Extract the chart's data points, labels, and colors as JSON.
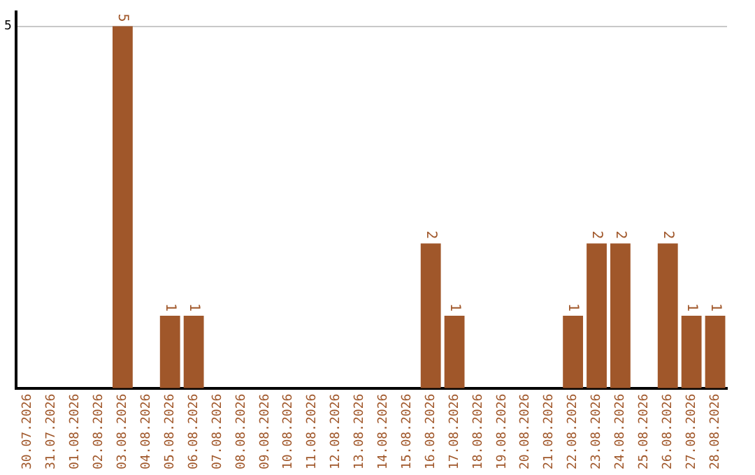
{
  "chart_data": {
    "type": "bar",
    "categories": [
      "30.07.2026",
      "31.07.2026",
      "01.08.2026",
      "02.08.2026",
      "03.08.2026",
      "04.08.2026",
      "05.08.2026",
      "06.08.2026",
      "07.08.2026",
      "08.08.2026",
      "09.08.2026",
      "10.08.2026",
      "11.08.2026",
      "12.08.2026",
      "13.08.2026",
      "14.08.2026",
      "15.08.2026",
      "16.08.2026",
      "17.08.2026",
      "18.08.2026",
      "19.08.2026",
      "20.08.2026",
      "21.08.2026",
      "22.08.2026",
      "23.08.2026",
      "24.08.2026",
      "25.08.2026",
      "26.08.2026",
      "27.08.2026",
      "28.08.2026"
    ],
    "values": [
      0,
      0,
      0,
      0,
      5,
      0,
      1,
      1,
      0,
      0,
      0,
      0,
      0,
      0,
      0,
      0,
      0,
      2,
      1,
      0,
      0,
      0,
      0,
      1,
      2,
      2,
      0,
      2,
      1,
      1
    ],
    "value_labels": [
      null,
      null,
      null,
      null,
      "5",
      null,
      "1",
      "1",
      null,
      null,
      null,
      null,
      null,
      null,
      null,
      null,
      null,
      "2",
      "1",
      null,
      null,
      null,
      null,
      "1",
      "2",
      "2",
      null,
      "2",
      "1",
      "1"
    ],
    "color": "#a0572a",
    "ylim": [
      0,
      5.2
    ],
    "yticks": [
      5
    ],
    "grid": "y",
    "legend": false
  }
}
